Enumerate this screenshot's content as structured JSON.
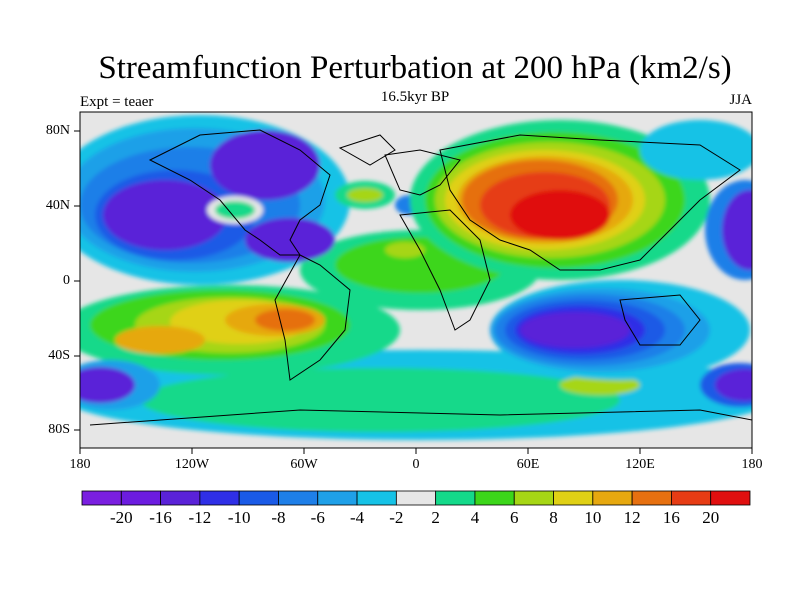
{
  "title": "Streamfunction Perturbation at 200 hPa (km2/s)",
  "center_string": "16.5kyr BP",
  "left_string": "Expt = teaer",
  "right_string": "JJA",
  "lat_labels": [
    "80N",
    "40N",
    "0",
    "40S",
    "80S"
  ],
  "lon_labels": [
    "180",
    "120W",
    "60W",
    "0",
    "60E",
    "120E",
    "180"
  ],
  "colorbar": {
    "colors": [
      "#7a1fe0",
      "#6c1ce0",
      "#5a22d8",
      "#2f2fe6",
      "#1a5ae6",
      "#1e7fe8",
      "#1fa0e8",
      "#16c2e6",
      "#e6e6e6",
      "#14d98a",
      "#3cd61a",
      "#a6d615",
      "#e0d015",
      "#e6a80f",
      "#e67010",
      "#e63c14",
      "#e00f0f"
    ],
    "labels": [
      "-20",
      "-16",
      "-12",
      "-10",
      "-8",
      "-6",
      "-4",
      "-2",
      "2",
      "4",
      "6",
      "8",
      "10",
      "12",
      "16",
      "20"
    ]
  }
}
